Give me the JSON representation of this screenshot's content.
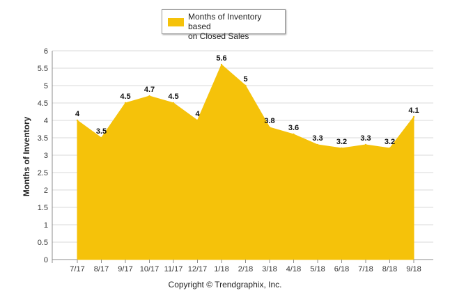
{
  "chart_data": {
    "type": "area",
    "categories": [
      "7/17",
      "8/17",
      "9/17",
      "10/17",
      "11/17",
      "12/17",
      "1/18",
      "2/18",
      "3/18",
      "4/18",
      "5/18",
      "6/18",
      "7/18",
      "8/18",
      "9/18"
    ],
    "series": [
      {
        "name": "Months of Inventory based on Closed Sales",
        "values": [
          4,
          3.5,
          4.5,
          4.7,
          4.5,
          4,
          5.6,
          5,
          3.8,
          3.6,
          3.3,
          3.2,
          3.3,
          3.2,
          4.1
        ],
        "labels": [
          "4",
          "3.5",
          "4.5",
          "4.7",
          "4.5",
          "4",
          "5.6",
          "5",
          "3.8",
          "3.6",
          "3.3",
          "3.2",
          "3.3",
          "3.2",
          "4.1"
        ],
        "color": "#f5c20a"
      }
    ],
    "ylabel": "Months of Inventory",
    "xlabel": "",
    "ylim": [
      0,
      6
    ],
    "yticks": [
      "0",
      "0.5",
      "1",
      "1.5",
      "2",
      "2.5",
      "3",
      "3.5",
      "4",
      "4.5",
      "5",
      "5.5",
      "6"
    ],
    "grid": true,
    "legend": "top-center"
  },
  "legend": {
    "label_line1": "Months of Inventory based",
    "label_line2": "on Closed Sales"
  },
  "footer": {
    "copyright": "Copyright © Trendgraphix, Inc."
  },
  "colors": {
    "area": "#f5c20a",
    "grid": "#d9d9d9",
    "axis": "#8c8c8c"
  }
}
